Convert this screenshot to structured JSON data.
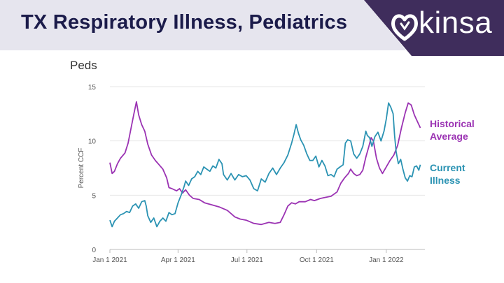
{
  "header": {
    "title": "TX Respiratory Illness, Pediatrics",
    "logo_text": "kinsa",
    "banner_color": "#e6e5ee",
    "logo_bg_color": "#3f2d5c"
  },
  "chart_data": {
    "type": "line",
    "title": "Peds",
    "xlabel": "",
    "ylabel": "Percent CCF",
    "ylim": [
      0,
      15
    ],
    "yticks": [
      0,
      5,
      10,
      15
    ],
    "xticks": [
      "Jan 1 2021",
      "Apr 1 2021",
      "Jul 1 2021",
      "Oct 1 2021",
      "Jan 1 2022"
    ],
    "xtick_days": [
      0,
      90,
      181,
      273,
      365
    ],
    "xlim_days": [
      0,
      416
    ],
    "grid": true,
    "series": [
      {
        "name": "Historical Average",
        "legend_lines": [
          "Historical",
          "Average"
        ],
        "color": "#9b33b3",
        "points": [
          [
            0,
            8.0
          ],
          [
            3,
            7.0
          ],
          [
            6,
            7.2
          ],
          [
            10,
            7.9
          ],
          [
            14,
            8.4
          ],
          [
            20,
            8.9
          ],
          [
            24,
            9.8
          ],
          [
            28,
            11.2
          ],
          [
            32,
            12.6
          ],
          [
            35,
            13.6
          ],
          [
            38,
            12.4
          ],
          [
            42,
            11.5
          ],
          [
            46,
            10.9
          ],
          [
            50,
            9.7
          ],
          [
            55,
            8.7
          ],
          [
            60,
            8.2
          ],
          [
            65,
            7.8
          ],
          [
            70,
            7.4
          ],
          [
            75,
            6.6
          ],
          [
            78,
            5.7
          ],
          [
            82,
            5.6
          ],
          [
            88,
            5.4
          ],
          [
            92,
            5.6
          ],
          [
            96,
            5.2
          ],
          [
            100,
            5.5
          ],
          [
            105,
            5.0
          ],
          [
            110,
            4.7
          ],
          [
            118,
            4.6
          ],
          [
            125,
            4.3
          ],
          [
            135,
            4.1
          ],
          [
            145,
            3.9
          ],
          [
            155,
            3.6
          ],
          [
            160,
            3.3
          ],
          [
            165,
            3.0
          ],
          [
            172,
            2.8
          ],
          [
            180,
            2.7
          ],
          [
            190,
            2.4
          ],
          [
            200,
            2.3
          ],
          [
            210,
            2.5
          ],
          [
            218,
            2.4
          ],
          [
            225,
            2.5
          ],
          [
            230,
            3.2
          ],
          [
            235,
            4.0
          ],
          [
            240,
            4.3
          ],
          [
            245,
            4.2
          ],
          [
            250,
            4.4
          ],
          [
            258,
            4.4
          ],
          [
            265,
            4.6
          ],
          [
            270,
            4.5
          ],
          [
            278,
            4.7
          ],
          [
            285,
            4.8
          ],
          [
            292,
            4.9
          ],
          [
            300,
            5.3
          ],
          [
            305,
            6.1
          ],
          [
            310,
            6.6
          ],
          [
            315,
            7.0
          ],
          [
            318,
            7.4
          ],
          [
            322,
            7.0
          ],
          [
            326,
            6.8
          ],
          [
            330,
            6.9
          ],
          [
            334,
            7.3
          ],
          [
            338,
            8.5
          ],
          [
            342,
            9.5
          ],
          [
            345,
            10.3
          ],
          [
            348,
            10.0
          ],
          [
            352,
            8.4
          ],
          [
            356,
            7.5
          ],
          [
            360,
            7.0
          ],
          [
            365,
            7.6
          ],
          [
            370,
            8.2
          ],
          [
            375,
            8.7
          ],
          [
            380,
            9.6
          ],
          [
            385,
            11.2
          ],
          [
            390,
            12.6
          ],
          [
            394,
            13.5
          ],
          [
            398,
            13.3
          ],
          [
            402,
            12.4
          ],
          [
            406,
            11.8
          ],
          [
            410,
            11.2
          ]
        ]
      },
      {
        "name": "Current Illness",
        "legend_lines": [
          "Current",
          "Illness"
        ],
        "color": "#2b93b3",
        "points": [
          [
            0,
            2.7
          ],
          [
            3,
            2.1
          ],
          [
            6,
            2.6
          ],
          [
            10,
            2.9
          ],
          [
            14,
            3.2
          ],
          [
            18,
            3.3
          ],
          [
            22,
            3.5
          ],
          [
            26,
            3.4
          ],
          [
            30,
            4.0
          ],
          [
            34,
            4.2
          ],
          [
            38,
            3.8
          ],
          [
            42,
            4.4
          ],
          [
            46,
            4.5
          ],
          [
            48,
            4.0
          ],
          [
            50,
            3.1
          ],
          [
            54,
            2.5
          ],
          [
            58,
            2.9
          ],
          [
            62,
            2.1
          ],
          [
            66,
            2.6
          ],
          [
            70,
            2.9
          ],
          [
            74,
            2.6
          ],
          [
            78,
            3.4
          ],
          [
            82,
            3.2
          ],
          [
            86,
            3.3
          ],
          [
            90,
            4.3
          ],
          [
            94,
            5.0
          ],
          [
            98,
            5.8
          ],
          [
            100,
            6.3
          ],
          [
            104,
            5.9
          ],
          [
            108,
            6.5
          ],
          [
            112,
            6.7
          ],
          [
            116,
            7.2
          ],
          [
            120,
            6.9
          ],
          [
            124,
            7.6
          ],
          [
            128,
            7.4
          ],
          [
            132,
            7.2
          ],
          [
            136,
            7.7
          ],
          [
            140,
            7.5
          ],
          [
            144,
            8.3
          ],
          [
            148,
            7.9
          ],
          [
            150,
            6.9
          ],
          [
            155,
            6.4
          ],
          [
            160,
            7.0
          ],
          [
            165,
            6.4
          ],
          [
            170,
            6.9
          ],
          [
            175,
            6.7
          ],
          [
            180,
            6.8
          ],
          [
            185,
            6.4
          ],
          [
            190,
            5.6
          ],
          [
            195,
            5.4
          ],
          [
            200,
            6.5
          ],
          [
            205,
            6.2
          ],
          [
            210,
            7.0
          ],
          [
            215,
            7.5
          ],
          [
            220,
            6.9
          ],
          [
            225,
            7.5
          ],
          [
            230,
            8.0
          ],
          [
            235,
            8.7
          ],
          [
            240,
            9.8
          ],
          [
            243,
            10.6
          ],
          [
            246,
            11.5
          ],
          [
            249,
            10.7
          ],
          [
            252,
            10.1
          ],
          [
            256,
            9.6
          ],
          [
            260,
            8.8
          ],
          [
            264,
            8.2
          ],
          [
            268,
            8.2
          ],
          [
            272,
            8.6
          ],
          [
            276,
            7.6
          ],
          [
            280,
            8.2
          ],
          [
            284,
            7.7
          ],
          [
            288,
            6.8
          ],
          [
            292,
            6.9
          ],
          [
            296,
            6.7
          ],
          [
            300,
            7.4
          ],
          [
            304,
            7.6
          ],
          [
            308,
            7.8
          ],
          [
            311,
            9.8
          ],
          [
            314,
            10.1
          ],
          [
            318,
            10.0
          ],
          [
            322,
            8.8
          ],
          [
            326,
            8.4
          ],
          [
            330,
            8.8
          ],
          [
            334,
            9.5
          ],
          [
            336,
            10.2
          ],
          [
            338,
            10.9
          ],
          [
            340,
            10.5
          ],
          [
            343,
            10.3
          ],
          [
            346,
            9.5
          ],
          [
            350,
            10.4
          ],
          [
            354,
            10.8
          ],
          [
            358,
            10.0
          ],
          [
            362,
            10.9
          ],
          [
            365,
            12.0
          ],
          [
            368,
            13.5
          ],
          [
            371,
            13.1
          ],
          [
            374,
            12.5
          ],
          [
            376,
            10.5
          ],
          [
            378,
            9.0
          ],
          [
            381,
            7.9
          ],
          [
            384,
            8.3
          ],
          [
            387,
            7.4
          ],
          [
            390,
            6.6
          ],
          [
            393,
            6.3
          ],
          [
            396,
            6.8
          ],
          [
            399,
            6.7
          ],
          [
            402,
            7.6
          ],
          [
            405,
            7.7
          ],
          [
            408,
            7.3
          ],
          [
            410,
            7.8
          ]
        ]
      }
    ]
  }
}
